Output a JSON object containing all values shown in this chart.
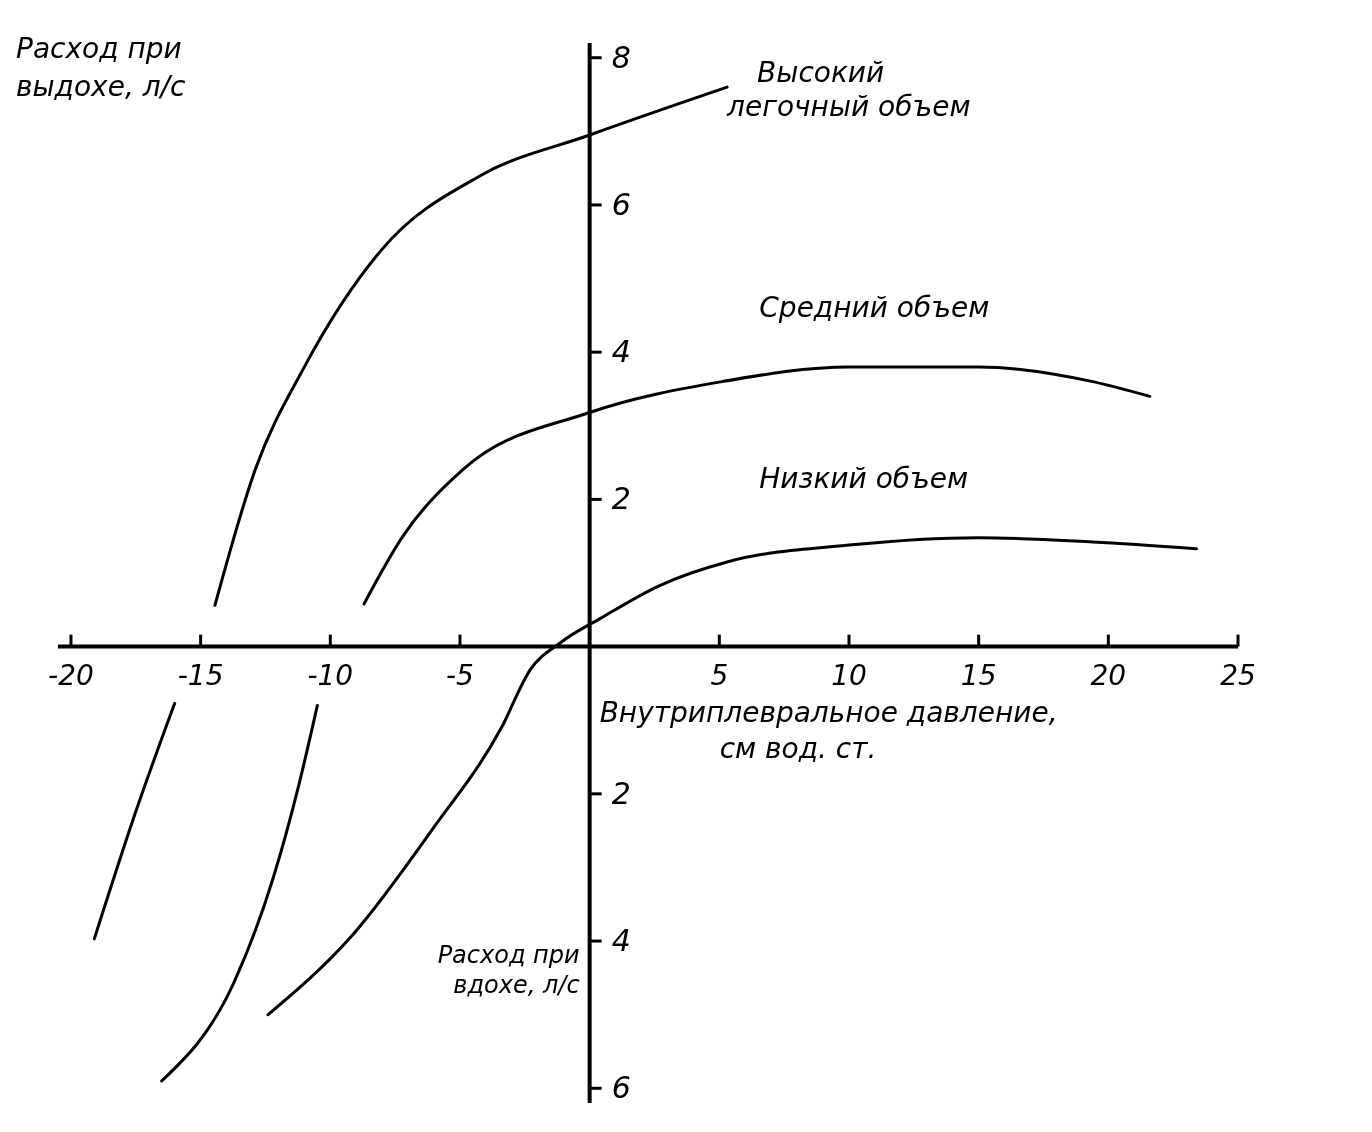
{
  "chart_data": {
    "type": "line",
    "ylabel": "Расход при выдохе, л/с",
    "xlabel": "Внутриплевральное давление, см вод. ст.",
    "annotations": [
      "Расход при вдохе, л/с"
    ],
    "xlim": [
      -20.5,
      25
    ],
    "ylim": [
      -6.2,
      8.2
    ],
    "xticks": [
      -20,
      -15,
      -10,
      -5,
      5,
      10,
      15,
      20,
      25
    ],
    "yticks": [
      {
        "value": -6,
        "label": "6"
      },
      {
        "value": -4,
        "label": "4"
      },
      {
        "value": -2,
        "label": "2"
      },
      2,
      4,
      6,
      8
    ],
    "grid": false,
    "marker": "none",
    "line_style": "solid",
    "series": [
      {
        "name": "Высокий легочный объем",
        "color": "#000000",
        "x": [
          -19.1,
          -17.5,
          -16.0,
          null,
          -14.45,
          -12.9,
          -11.0,
          -8.0,
          -4.2,
          0,
          5.3
        ],
        "values": [
          -3.97,
          -2.24,
          -0.77,
          null,
          0.56,
          2.4,
          3.8,
          5.4,
          6.4,
          6.95,
          7.6
        ]
      },
      {
        "name": "Средний объем",
        "color": "#000000",
        "x": [
          -16.5,
          -13.7,
          -12.2,
          -11.2,
          -10.5,
          null,
          -8.7,
          -7.2,
          -4.9,
          0,
          5.1,
          10,
          15,
          19.4,
          21.6
        ],
        "values": [
          -5.9,
          -4.55,
          -3.14,
          -1.86,
          -0.8,
          null,
          0.58,
          1.5,
          2.4,
          3.18,
          3.6,
          3.8,
          3.8,
          3.6,
          3.4
        ]
      },
      {
        "name": "Низкий объем",
        "color": "#000000",
        "x": [
          -12.4,
          -9.1,
          -6.1,
          -3.4,
          -2.3,
          -1.1,
          0.4,
          2.7,
          5.3,
          10,
          15,
          19.4,
          23.4
        ],
        "values": [
          -5.0,
          -3.9,
          -2.5,
          -1.1,
          -0.32,
          0.06,
          0.38,
          0.83,
          1.15,
          1.38,
          1.48,
          1.42,
          1.33
        ]
      }
    ]
  }
}
